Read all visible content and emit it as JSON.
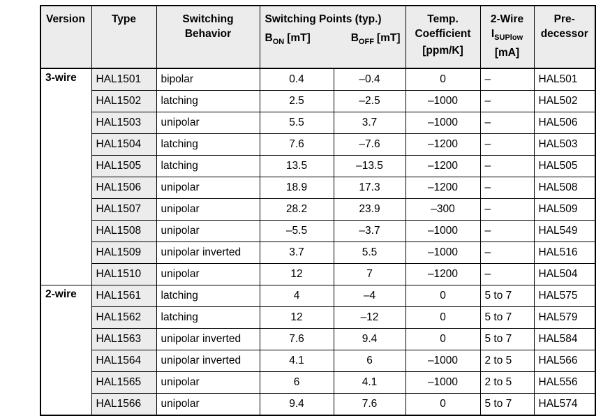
{
  "colors": {
    "header_bg": "#ececec",
    "type_column_bg": "#ececec",
    "border": "#000000",
    "text": "#000000",
    "page_bg": "#ffffff"
  },
  "table": {
    "header": {
      "version": "Version",
      "type": "Type",
      "switching_behavior": [
        "Switching",
        "Behavior"
      ],
      "switching_points_title": "Switching Points (typ.)",
      "b_on": {
        "base": "B",
        "sub": "ON",
        "unit": "[mT]"
      },
      "b_off": {
        "base": "B",
        "sub": "OFF",
        "unit": "[mT]"
      },
      "temp_coefficient": [
        "Temp.",
        "Coefficient",
        "[ppm/K]"
      ],
      "two_wire": {
        "line1": "2-Wire",
        "base": "I",
        "sub": "SUPlow",
        "unit": "[mA]"
      },
      "predecessor": [
        "Pre-",
        "decessor"
      ]
    },
    "sections": [
      {
        "version": "3-wire",
        "rows": [
          {
            "type": "HAL1501",
            "behavior": "bipolar",
            "b_on": "0.4",
            "b_off": "–0.4",
            "temp_coeff": "0",
            "i_suplow": "–",
            "predecessor": "HAL501"
          },
          {
            "type": "HAL1502",
            "behavior": "latching",
            "b_on": "2.5",
            "b_off": "–2.5",
            "temp_coeff": "–1000",
            "i_suplow": "–",
            "predecessor": "HAL502"
          },
          {
            "type": "HAL1503",
            "behavior": "unipolar",
            "b_on": "5.5",
            "b_off": "3.7",
            "temp_coeff": "–1000",
            "i_suplow": "–",
            "predecessor": "HAL506"
          },
          {
            "type": "HAL1504",
            "behavior": "latching",
            "b_on": "7.6",
            "b_off": "–7.6",
            "temp_coeff": "–1200",
            "i_suplow": "–",
            "predecessor": "HAL503"
          },
          {
            "type": "HAL1505",
            "behavior": "latching",
            "b_on": "13.5",
            "b_off": "–13.5",
            "temp_coeff": "–1200",
            "i_suplow": "–",
            "predecessor": "HAL505"
          },
          {
            "type": "HAL1506",
            "behavior": "unipolar",
            "b_on": "18.9",
            "b_off": "17.3",
            "temp_coeff": "–1200",
            "i_suplow": "–",
            "predecessor": "HAL508"
          },
          {
            "type": "HAL1507",
            "behavior": "unipolar",
            "b_on": "28.2",
            "b_off": "23.9",
            "temp_coeff": "–300",
            "i_suplow": "–",
            "predecessor": "HAL509"
          },
          {
            "type": "HAL1508",
            "behavior": "unipolar",
            "b_on": "–5.5",
            "b_off": "–3.7",
            "temp_coeff": "–1000",
            "i_suplow": "–",
            "predecessor": "HAL549"
          },
          {
            "type": "HAL1509",
            "behavior": "unipolar inverted",
            "b_on": "3.7",
            "b_off": "5.5",
            "temp_coeff": "–1000",
            "i_suplow": "–",
            "predecessor": "HAL516"
          },
          {
            "type": "HAL1510",
            "behavior": "unipolar",
            "b_on": "12",
            "b_off": "7",
            "temp_coeff": "–1200",
            "i_suplow": "–",
            "predecessor": "HAL504"
          }
        ]
      },
      {
        "version": "2-wire",
        "rows": [
          {
            "type": "HAL1561",
            "behavior": "latching",
            "b_on": "4",
            "b_off": "–4",
            "temp_coeff": "0",
            "i_suplow": "5 to 7",
            "predecessor": "HAL575"
          },
          {
            "type": "HAL1562",
            "behavior": "latching",
            "b_on": "12",
            "b_off": "–12",
            "temp_coeff": "0",
            "i_suplow": "5 to 7",
            "predecessor": "HAL579"
          },
          {
            "type": "HAL1563",
            "behavior": "unipolar inverted",
            "b_on": "7.6",
            "b_off": "9.4",
            "temp_coeff": "0",
            "i_suplow": "5 to 7",
            "predecessor": "HAL584"
          },
          {
            "type": "HAL1564",
            "behavior": "unipolar inverted",
            "b_on": "4.1",
            "b_off": "6",
            "temp_coeff": "–1000",
            "i_suplow": "2 to 5",
            "predecessor": "HAL566"
          },
          {
            "type": "HAL1565",
            "behavior": "unipolar",
            "b_on": "6",
            "b_off": "4.1",
            "temp_coeff": "–1000",
            "i_suplow": "2 to 5",
            "predecessor": "HAL556"
          },
          {
            "type": "HAL1566",
            "behavior": "unipolar",
            "b_on": "9.4",
            "b_off": "7.6",
            "temp_coeff": "0",
            "i_suplow": "5 to 7",
            "predecessor": "HAL574"
          }
        ]
      }
    ]
  }
}
